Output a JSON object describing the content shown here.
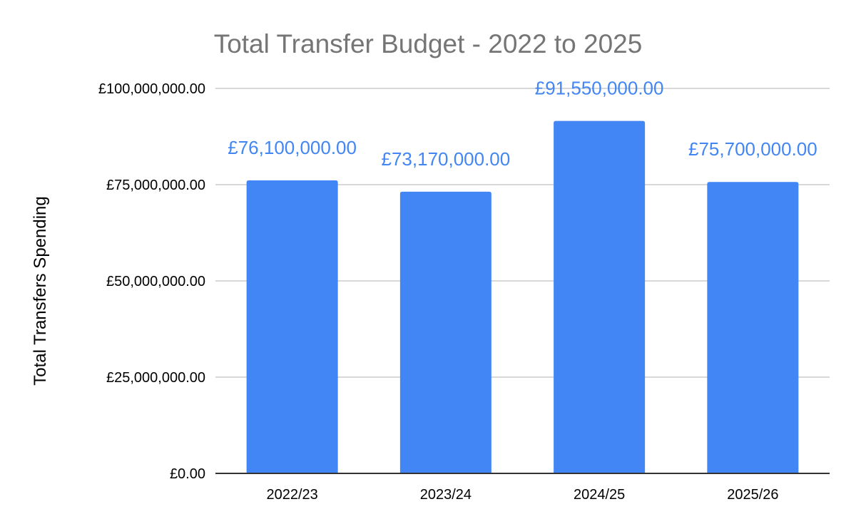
{
  "chart_data": {
    "type": "bar",
    "title": "Total Transfer Budget - 2022 to 2025",
    "xlabel": "",
    "ylabel": "Total Transfers Spending",
    "categories": [
      "2022/23",
      "2023/24",
      "2024/25",
      "2025/26"
    ],
    "values": [
      76100000,
      73170000,
      91550000,
      75700000
    ],
    "data_labels": [
      "£76,100,000.00",
      "£73,170,000.00",
      "£91,550,000.00",
      "£75,700,000.00"
    ],
    "ylim": [
      0,
      100000000
    ],
    "yticks": [
      0,
      25000000,
      50000000,
      75000000,
      100000000
    ],
    "ytick_labels": [
      "£0.00",
      "£25,000,000.00",
      "£50,000,000.00",
      "£75,000,000.00",
      "£100,000,000.00"
    ],
    "grid": true,
    "legend": "none",
    "colors": {
      "bar": "#4285f4",
      "data_label": "#4285f4",
      "title": "#757575",
      "grid": "#cccccc"
    }
  }
}
